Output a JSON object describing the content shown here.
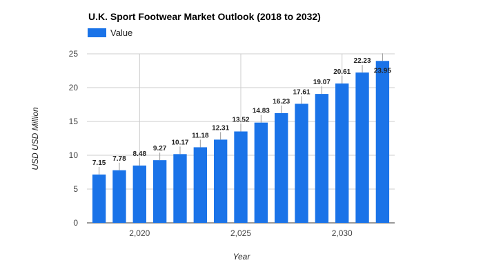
{
  "chart_data": {
    "type": "bar",
    "title": "U.K.  Sport Footwear Market Outlook (2018 to 2032)",
    "xlabel": "Year",
    "ylabel": "USD USD Million",
    "legend": {
      "position": "top-left",
      "entries": [
        "Value"
      ]
    },
    "series": [
      {
        "name": "Value",
        "color": "#1a73e8",
        "x": [
          2018,
          2019,
          2020,
          2021,
          2022,
          2023,
          2024,
          2025,
          2026,
          2027,
          2028,
          2029,
          2030,
          2031,
          2032
        ],
        "values": [
          7.15,
          7.78,
          8.48,
          9.27,
          10.17,
          11.18,
          12.31,
          13.52,
          14.83,
          16.23,
          17.61,
          19.07,
          20.61,
          22.23,
          23.95
        ],
        "labels": [
          "7.15",
          "7.78",
          "8.48",
          "9.27",
          "10.17",
          "11.18",
          "12.31",
          "13.52",
          "14.83",
          "16.23",
          "17.61",
          "19.07",
          "20.61",
          "22.23",
          "23.95"
        ]
      }
    ],
    "ylim": [
      0,
      25
    ],
    "yticks": [
      0,
      5,
      10,
      15,
      20,
      25
    ],
    "xlim": [
      2017.4,
      2032.6
    ],
    "xticks": [
      2020,
      2025,
      2030
    ],
    "xtick_labels": [
      "2,020",
      "2,025",
      "2,030"
    ],
    "grid": true
  }
}
